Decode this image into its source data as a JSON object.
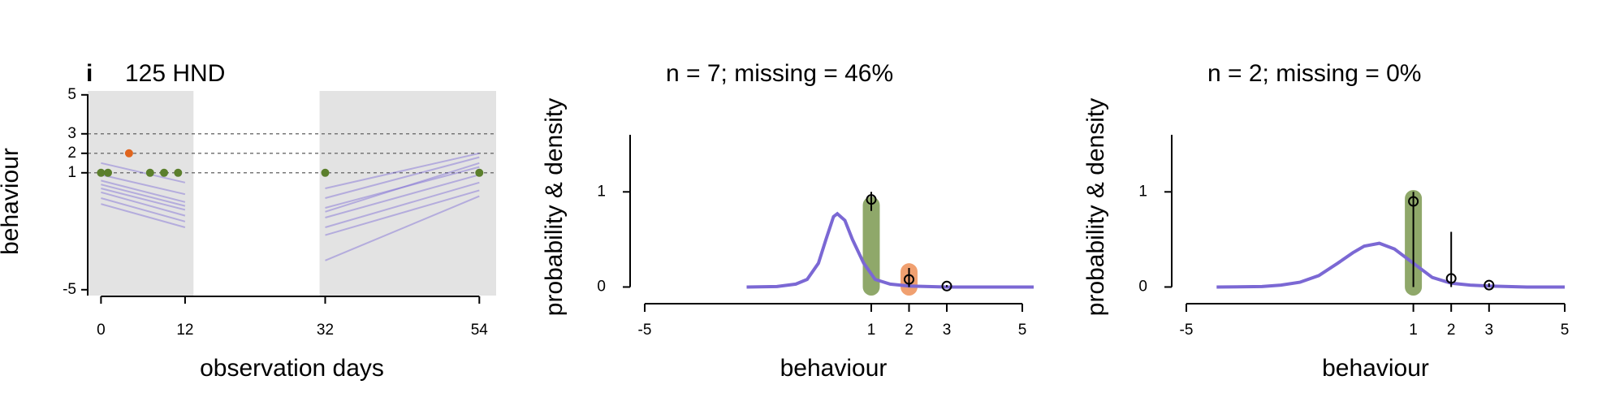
{
  "chart_data": [
    {
      "type": "line",
      "panel_label": "i",
      "title": "125 HND",
      "xlabel": "observation days",
      "ylabel": "behaviour",
      "xlim": [
        -1.9,
        56.4
      ],
      "ylim": [
        -5.3,
        5.2
      ],
      "xticks": [
        0,
        12,
        32,
        54
      ],
      "yticks": [
        -5,
        1,
        2,
        3,
        5
      ],
      "shaded_x": [
        [
          -1.9,
          13.2
        ],
        [
          31.2,
          56.4
        ]
      ],
      "reference_lines": [
        1,
        2,
        3
      ],
      "line_color": "#7b68d4",
      "lines": [
        {
          "x": [
            0,
            12
          ],
          "values": [
            1.5,
            0.5
          ]
        },
        {
          "x": [
            0,
            12
          ],
          "values": [
            0.9,
            -0.1
          ]
        },
        {
          "x": [
            0,
            12
          ],
          "values": [
            0.6,
            -0.5
          ]
        },
        {
          "x": [
            0,
            12
          ],
          "values": [
            0.4,
            -0.7
          ]
        },
        {
          "x": [
            0,
            12
          ],
          "values": [
            0.2,
            -0.9
          ]
        },
        {
          "x": [
            0,
            12
          ],
          "values": [
            0,
            -1.2
          ]
        },
        {
          "x": [
            0,
            12
          ],
          "values": [
            -0.3,
            -1.5
          ]
        },
        {
          "x": [
            0,
            12
          ],
          "values": [
            -0.6,
            -1.8
          ]
        },
        {
          "x": [
            32,
            54
          ],
          "values": [
            0.2,
            2.0
          ]
        },
        {
          "x": [
            32,
            54
          ],
          "values": [
            -0.3,
            1.8
          ]
        },
        {
          "x": [
            32,
            54
          ],
          "values": [
            -0.8,
            1.3
          ]
        },
        {
          "x": [
            32,
            54
          ],
          "values": [
            -1.0,
            1.5
          ]
        },
        {
          "x": [
            32,
            54
          ],
          "values": [
            -1.3,
            0.9
          ]
        },
        {
          "x": [
            32,
            54
          ],
          "values": [
            -1.8,
            0.5
          ]
        },
        {
          "x": [
            32,
            54
          ],
          "values": [
            -2.2,
            0.1
          ]
        },
        {
          "x": [
            32,
            54
          ],
          "values": [
            -3.5,
            -0.2
          ]
        }
      ],
      "points": [
        {
          "color": "#5b7f2c",
          "x": [
            0,
            1,
            7,
            9,
            11,
            32,
            54
          ],
          "values": [
            1,
            1,
            1,
            1,
            1,
            1,
            1
          ]
        },
        {
          "color": "#e0651e",
          "x": [
            4
          ],
          "values": [
            2
          ]
        }
      ]
    },
    {
      "type": "density",
      "title": "n = 7; missing = 46%",
      "xlabel": "behaviour",
      "ylabel": "probability & density",
      "xlim": [
        -5,
        5
      ],
      "ylim": [
        -0.09,
        1.6
      ],
      "xticks": [
        -5,
        1,
        2,
        3,
        5
      ],
      "yticks": [
        0,
        1
      ],
      "bars": {
        "x": [
          1,
          2
        ],
        "values": [
          0.95,
          0.25
        ],
        "colors": [
          "#8fa86a",
          "#f0a070"
        ]
      },
      "density": {
        "color": "#7b68d4",
        "x": [
          -2.3,
          -1.5,
          -1,
          -0.7,
          -0.4,
          -0.2,
          0,
          0.1,
          0.3,
          0.5,
          0.8,
          1.1,
          1.5,
          2,
          2.5,
          3,
          4,
          5.3
        ],
        "values": [
          0,
          0.005,
          0.03,
          0.08,
          0.25,
          0.5,
          0.74,
          0.77,
          0.7,
          0.5,
          0.25,
          0.08,
          0.03,
          0.01,
          0.005,
          0,
          0,
          0
        ]
      },
      "points": {
        "x": [
          1,
          2,
          3
        ],
        "values": [
          0.92,
          0.08,
          0.01
        ],
        "lower": [
          0.8,
          0,
          0
        ],
        "upper": [
          1.0,
          0.2,
          0.02
        ]
      }
    },
    {
      "type": "density",
      "title": "n = 2; missing = 0%",
      "xlabel": "behaviour",
      "ylabel": "probability & density",
      "xlim": [
        -5,
        5
      ],
      "ylim": [
        -0.09,
        1.6
      ],
      "xticks": [
        -5,
        1,
        2,
        3,
        5
      ],
      "yticks": [
        0,
        1
      ],
      "bars": {
        "x": [
          1
        ],
        "values": [
          1.02
        ],
        "colors": [
          "#8fa86a"
        ]
      },
      "density": {
        "color": "#7b68d4",
        "x": [
          -4.2,
          -3,
          -2.5,
          -2,
          -1.5,
          -1,
          -0.6,
          -0.3,
          0.1,
          0.5,
          1,
          1.5,
          2,
          2.5,
          3,
          4,
          5
        ],
        "values": [
          0,
          0.005,
          0.02,
          0.05,
          0.12,
          0.25,
          0.36,
          0.43,
          0.46,
          0.4,
          0.25,
          0.1,
          0.04,
          0.02,
          0.01,
          0,
          0
        ]
      },
      "points": {
        "x": [
          1,
          2,
          3
        ],
        "values": [
          0.9,
          0.09,
          0.02
        ],
        "lower": [
          0,
          0,
          0
        ],
        "upper": [
          1.0,
          0.58,
          0.04
        ]
      }
    }
  ]
}
